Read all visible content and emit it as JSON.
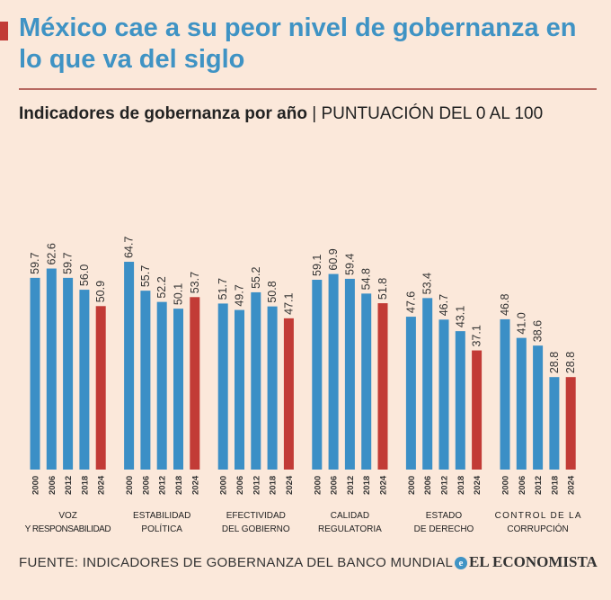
{
  "title": "México cae a su peor nivel de gobernanza en lo que va del siglo",
  "subtitle_bold": "Indicadores de gobernanza por año",
  "subtitle_rest": " | PUNTUACIÓN DEL 0 AL 100",
  "footer": "FUENTE: INDICADORES DE GOBERNANZA DEL BANCO MUNDIAL",
  "brand": "EL ECONOMISTA",
  "brand_icon": "e",
  "colors": {
    "historic": "#3b8fc6",
    "latest": "#c23b36"
  },
  "chart_data": {
    "type": "bar",
    "title": "Indicadores de gobernanza por año",
    "ylabel": "Puntuación del 0 al 100",
    "ylim": [
      0,
      100
    ],
    "years": [
      "2000",
      "2006",
      "2012",
      "2018",
      "2024"
    ],
    "groups": [
      {
        "label": [
          "VOZ",
          "Y RESPONSABILIDAD"
        ],
        "values": [
          59.7,
          62.6,
          59.7,
          56.0,
          50.9
        ]
      },
      {
        "label": [
          "ESTABILIDAD",
          "POLÍTICA"
        ],
        "values": [
          64.7,
          55.7,
          52.2,
          50.1,
          53.7
        ]
      },
      {
        "label": [
          "EFECTIVIDAD",
          "DEL GOBIERNO"
        ],
        "values": [
          51.7,
          49.7,
          55.2,
          50.8,
          47.1
        ]
      },
      {
        "label": [
          "CALIDAD",
          "REGULATORIA"
        ],
        "values": [
          59.1,
          60.9,
          59.4,
          54.8,
          51.8
        ]
      },
      {
        "label": [
          "ESTADO",
          "DE DERECHO"
        ],
        "values": [
          47.6,
          53.4,
          46.7,
          43.1,
          37.1
        ]
      },
      {
        "label": [
          "CONTROL DE LA",
          "CORRUPCIÓN"
        ],
        "values": [
          46.8,
          41.0,
          38.6,
          28.8,
          28.8
        ]
      }
    ],
    "grid": false,
    "legend": "none"
  }
}
